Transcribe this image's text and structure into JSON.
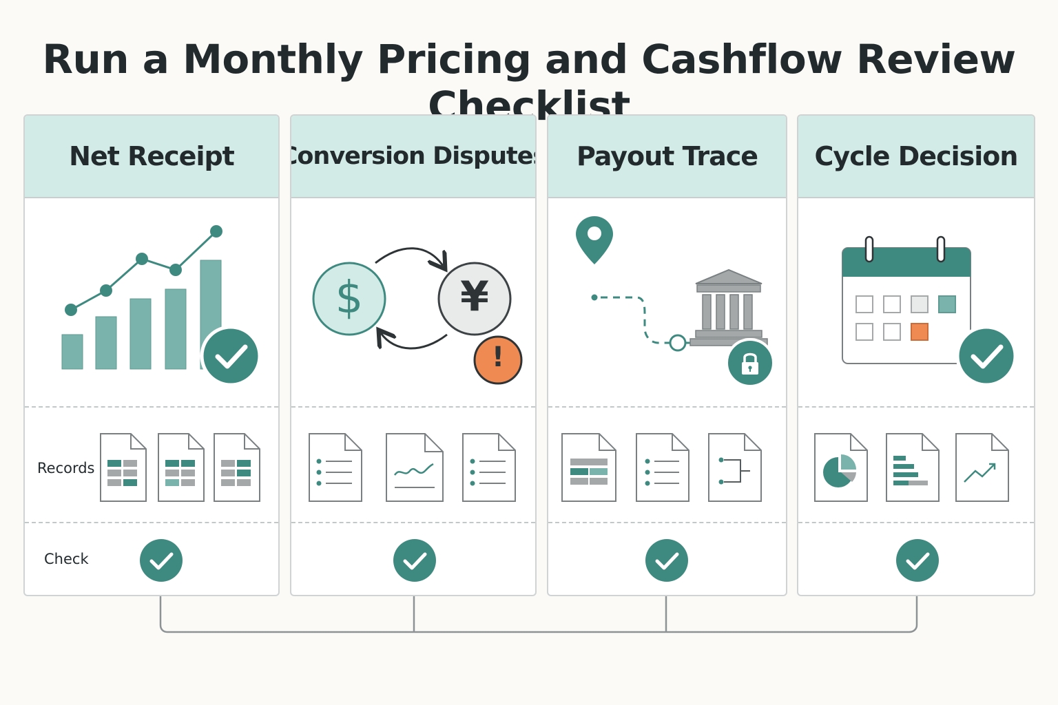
{
  "title": "Run a Monthly Pricing and Cashflow Review Checklist",
  "row_labels": {
    "records": "Records",
    "check": "Check"
  },
  "columns": [
    {
      "heading": "Net Receipt",
      "icon": "bar-line-chart-icon",
      "status": "check-icon"
    },
    {
      "heading": "Conversion Disputes",
      "icon": "currency-exchange-icon",
      "status": "alert-icon"
    },
    {
      "heading": "Payout Trace",
      "icon": "bank-route-icon",
      "status": "lock-icon"
    },
    {
      "heading": "Cycle Decision",
      "icon": "calendar-icon",
      "status": "check-icon"
    }
  ],
  "currency_symbols": {
    "from": "$",
    "to": "¥"
  },
  "alert_symbol": "!",
  "colors": {
    "teal": "#3f8a80",
    "teal_light": "#7ab3ab",
    "mint_header": "#d3ebe6",
    "orange": "#ef8a52",
    "gray": "#a4a8a9",
    "outline": "#555c5e"
  }
}
